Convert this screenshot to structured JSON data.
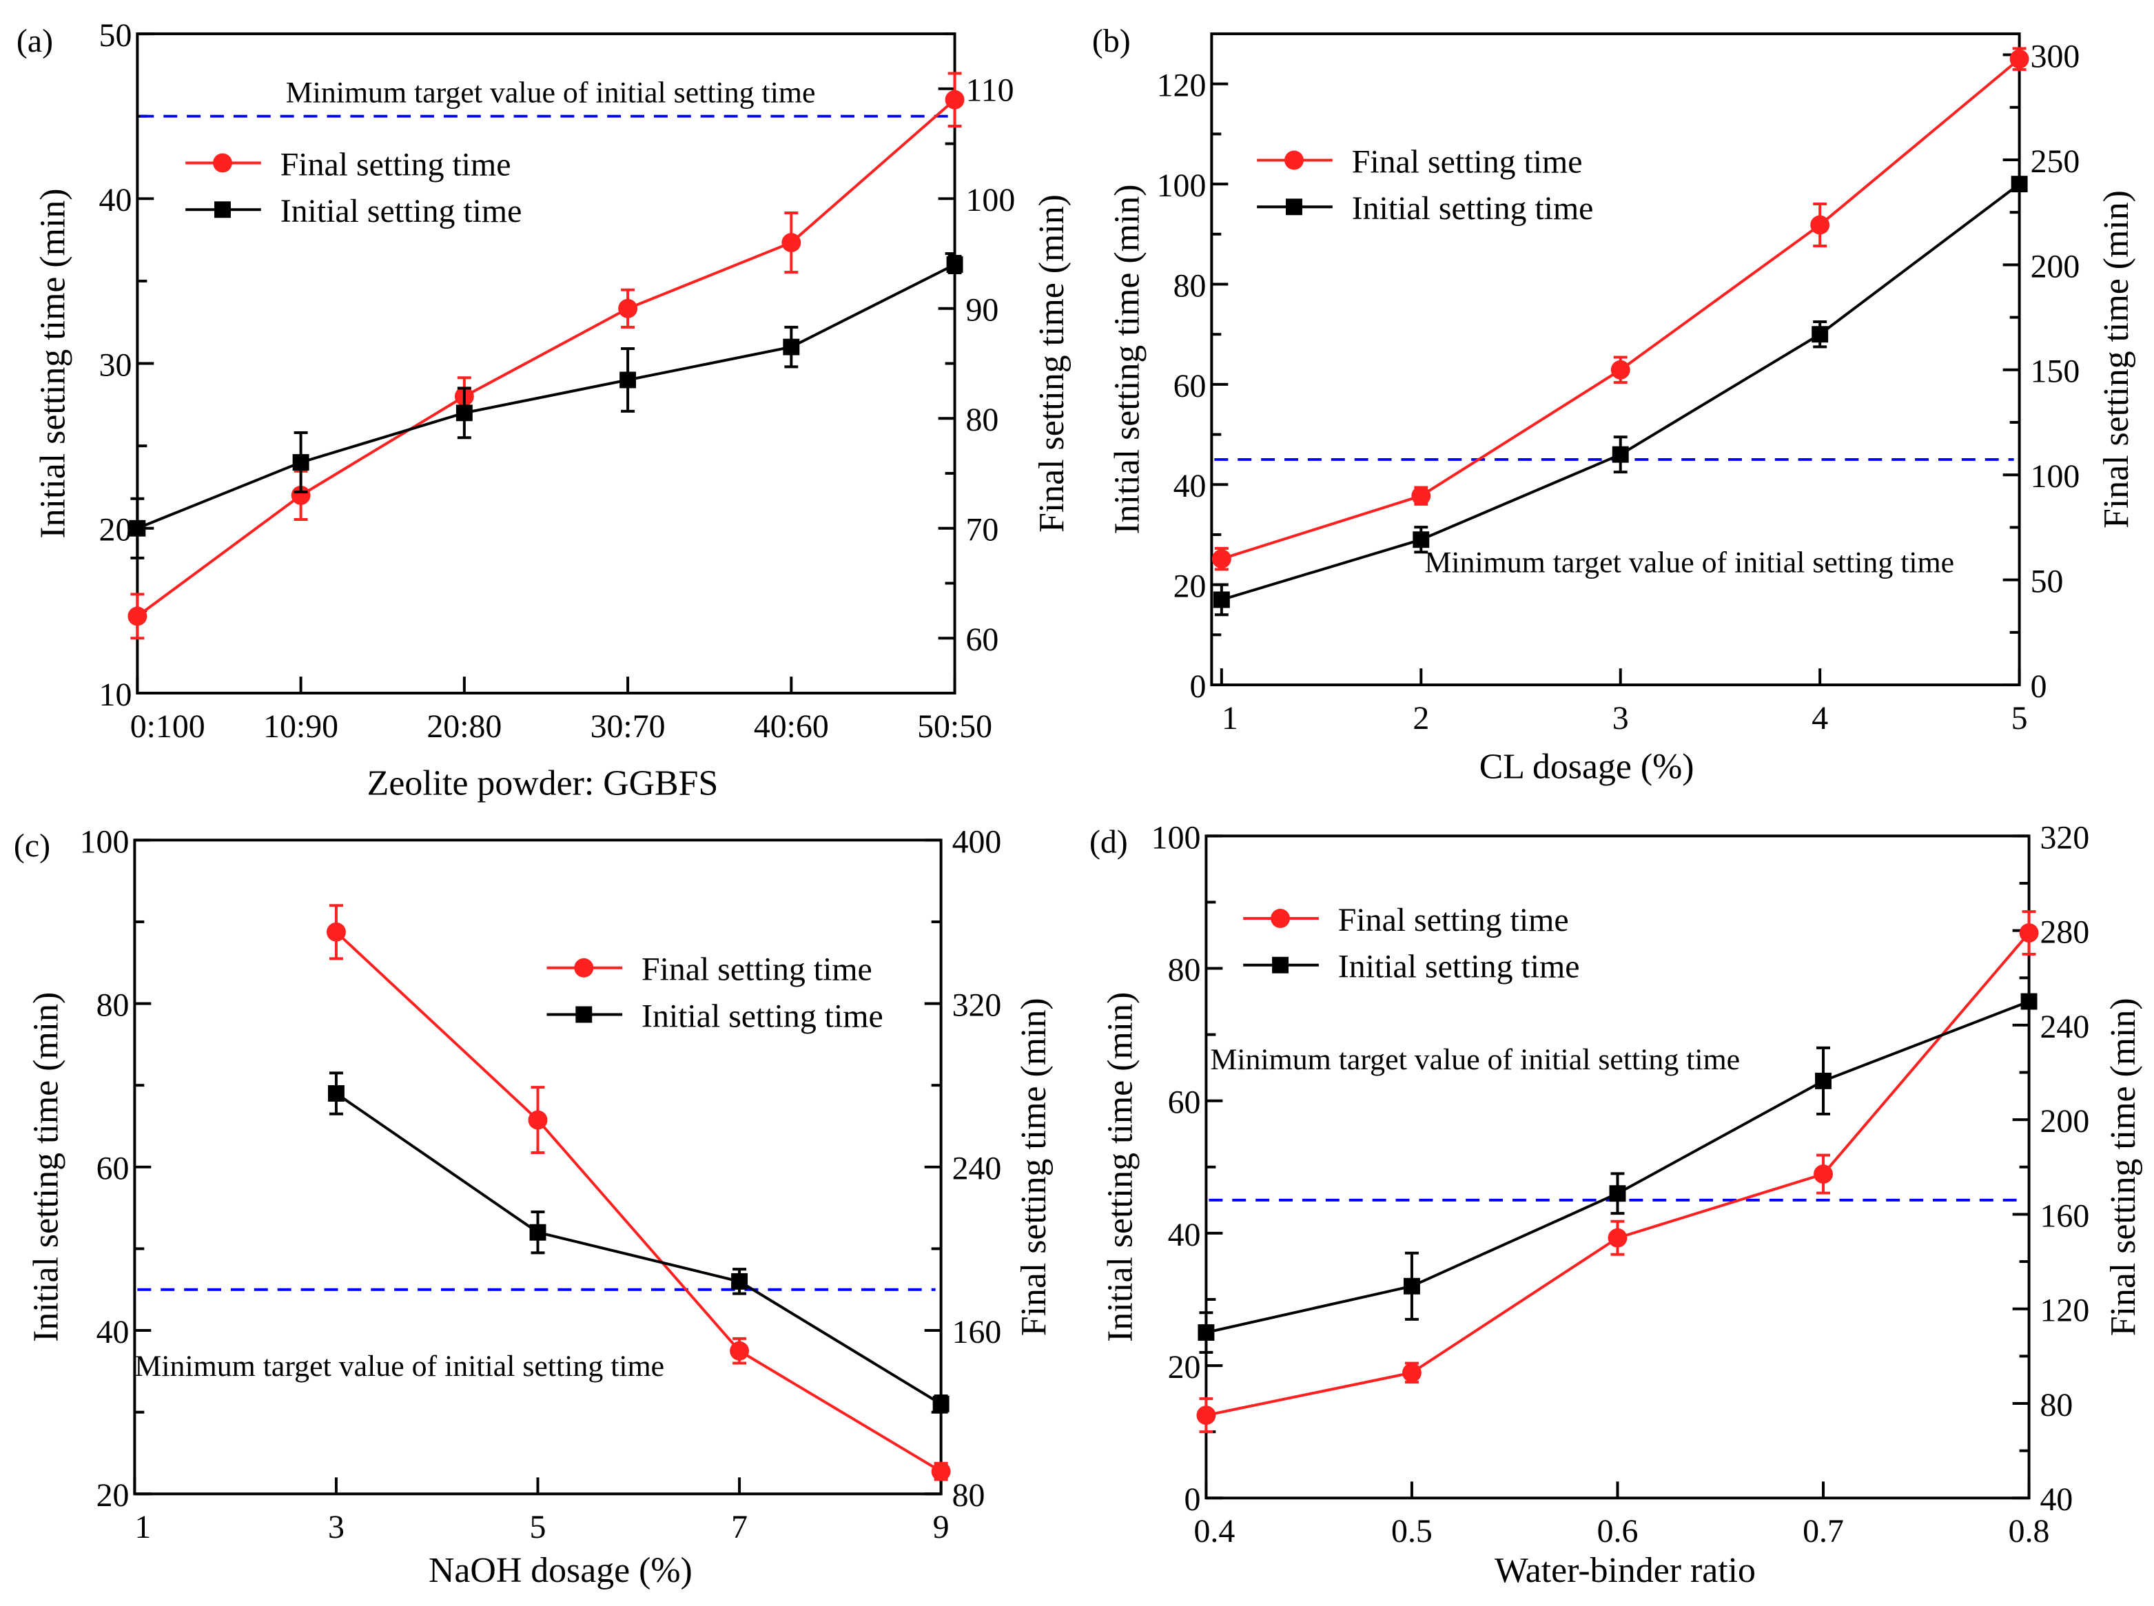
{
  "chart_data": [
    {
      "panel": "(a)",
      "type": "line",
      "x_type": "category",
      "categories": [
        "0:100",
        "10:90",
        "20:80",
        "30:70",
        "40:60",
        "50:50"
      ],
      "xlabel": "Zeolite powder: GGBFS",
      "ylabel": "Initial setting time (min)",
      "y2label": "Final setting time (min)",
      "ylim": [
        10,
        50
      ],
      "yticks": [
        10,
        20,
        30,
        40,
        50
      ],
      "y2lim": [
        55,
        115
      ],
      "y2ticks": [
        60,
        70,
        80,
        90,
        100,
        110
      ],
      "series": [
        {
          "name": "Final setting time",
          "axis": "right",
          "color": "#ff2020",
          "marker": "circle",
          "values": [
            62,
            73,
            82,
            90,
            96,
            109
          ],
          "errors": [
            2,
            2.2,
            1.7,
            1.7,
            2.7,
            2.4
          ]
        },
        {
          "name": "Initial setting time",
          "axis": "left",
          "color": "#000000",
          "marker": "square",
          "values": [
            20,
            24,
            27,
            29,
            31,
            36
          ],
          "errors": [
            1.8,
            1.8,
            1.5,
            1.9,
            1.2,
            0.5
          ]
        }
      ],
      "reference_line": {
        "value": 45,
        "axis": "left",
        "color": "#0000ff",
        "label": "Minimum target value of initial setting time"
      },
      "legend": [
        "Final setting time",
        "Initial setting time"
      ]
    },
    {
      "panel": "(b)",
      "type": "line",
      "x_type": "numeric",
      "x": [
        1,
        2,
        3,
        4,
        5
      ],
      "xticks": [
        1,
        2,
        3,
        4,
        5
      ],
      "xlim": [
        0.95,
        5
      ],
      "xlabel": "CL dosage (%)",
      "ylabel": "Initial setting time (min)",
      "y2label": "Final setting time (min)",
      "ylim": [
        0,
        130
      ],
      "yticks": [
        0,
        20,
        40,
        60,
        80,
        100,
        120
      ],
      "y2lim": [
        0,
        310
      ],
      "y2ticks": [
        0,
        50,
        100,
        150,
        200,
        250,
        300
      ],
      "series": [
        {
          "name": "Final setting time",
          "axis": "right",
          "color": "#ff2020",
          "marker": "circle",
          "values": [
            60,
            90,
            150,
            219,
            298
          ],
          "errors": [
            5,
            4,
            6,
            10,
            5
          ]
        },
        {
          "name": "Initial setting time",
          "axis": "left",
          "color": "#000000",
          "marker": "square",
          "values": [
            17,
            29,
            46,
            70,
            100
          ],
          "errors": [
            3,
            2.5,
            3.5,
            2.5,
            1
          ]
        }
      ],
      "reference_line": {
        "value": 45,
        "axis": "left",
        "color": "#0000ff",
        "label": "Minimum target value of initial setting time"
      },
      "legend": [
        "Final setting time",
        "Initial setting time"
      ]
    },
    {
      "panel": "(c)",
      "type": "line",
      "x_type": "numeric",
      "x": [
        3,
        5,
        7,
        9
      ],
      "xticks": [
        1,
        3,
        5,
        7,
        9
      ],
      "xlim": [
        1,
        9
      ],
      "xlabel": "NaOH dosage (%)",
      "ylabel": "Initial setting time (min)",
      "y2label": "Final setting time (min)",
      "ylim": [
        20,
        100
      ],
      "yticks": [
        20,
        40,
        60,
        80,
        100
      ],
      "y2lim": [
        80,
        400
      ],
      "y2ticks": [
        80,
        160,
        240,
        320,
        400
      ],
      "series": [
        {
          "name": "Final setting time",
          "axis": "right",
          "color": "#ff2020",
          "marker": "circle",
          "values": [
            355,
            263,
            150,
            91
          ],
          "errors": [
            13,
            16,
            6,
            4
          ]
        },
        {
          "name": "Initial setting time",
          "axis": "left",
          "color": "#000000",
          "marker": "square",
          "values": [
            69,
            52,
            46,
            31
          ],
          "errors": [
            2.5,
            2.5,
            1.5,
            1
          ]
        }
      ],
      "reference_line": {
        "value": 45,
        "axis": "left",
        "color": "#0000ff",
        "label": "Minimum target value of initial setting time"
      },
      "legend": [
        "Final setting time",
        "Initial setting time"
      ]
    },
    {
      "panel": "(d)",
      "type": "line",
      "x_type": "numeric",
      "x": [
        0.4,
        0.5,
        0.6,
        0.7,
        0.8
      ],
      "xticks": [
        0.4,
        0.5,
        0.6,
        0.7,
        0.8
      ],
      "xlim": [
        0.4,
        0.8
      ],
      "xlabel": "Water-binder ratio",
      "ylabel": "Initial setting time (min)",
      "y2label": "Final setting time (min)",
      "ylim": [
        0,
        100
      ],
      "yticks": [
        0,
        20,
        40,
        60,
        80,
        100
      ],
      "y2lim": [
        40,
        320
      ],
      "y2ticks": [
        40,
        80,
        120,
        160,
        200,
        240,
        280,
        320
      ],
      "series": [
        {
          "name": "Final setting time",
          "axis": "right",
          "color": "#ff2020",
          "marker": "circle",
          "values": [
            75,
            93,
            150,
            177,
            279
          ],
          "errors": [
            7,
            4,
            7,
            8,
            9
          ]
        },
        {
          "name": "Initial setting time",
          "axis": "left",
          "color": "#000000",
          "marker": "square",
          "values": [
            25,
            32,
            46,
            63,
            75
          ],
          "errors": [
            3,
            5,
            3,
            5,
            1
          ]
        }
      ],
      "reference_line": {
        "value": 45,
        "axis": "left",
        "color": "#0000ff",
        "label": "Minimum target value of initial setting time"
      },
      "legend": [
        "Final setting time",
        "Initial setting time"
      ]
    }
  ]
}
